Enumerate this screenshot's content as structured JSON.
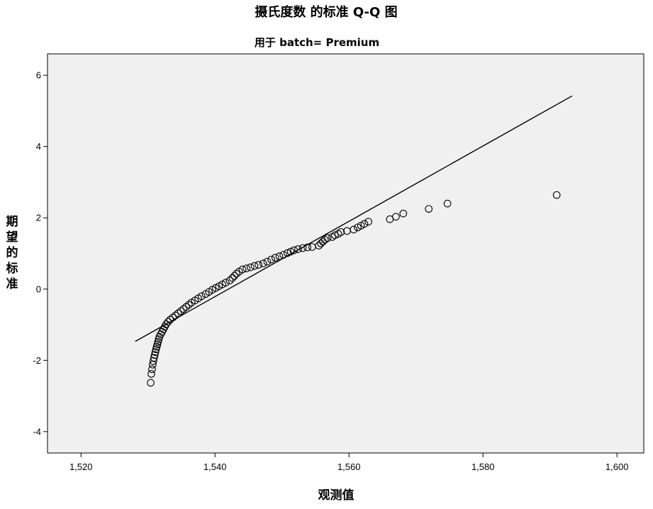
{
  "chart_data": {
    "type": "scatter",
    "title": "摄氏度数 的标准 Q-Q 图",
    "subtitle": "用于 batch= Premium",
    "xlabel": "观测值",
    "ylabel": "期望的标准",
    "xlim": [
      1515,
      1604
    ],
    "ylim": [
      -4.6,
      6.6
    ],
    "x_ticks": [
      1520,
      1540,
      1560,
      1580,
      1600
    ],
    "x_tick_labels": [
      "1,520",
      "1,540",
      "1,560",
      "1,580",
      "1,600"
    ],
    "y_ticks": [
      -4,
      -2,
      0,
      2,
      4,
      6
    ],
    "y_tick_labels": [
      "-4",
      "-2",
      "0",
      "2",
      "4",
      "6"
    ],
    "grid": false,
    "plot_background": "#f0f0f0",
    "marker_color": "#000000",
    "line_color": "#000000",
    "reference_line": [
      [
        1528.1,
        -1.47
      ],
      [
        1593.3,
        5.42
      ]
    ],
    "points": [
      [
        1530.4,
        -2.63
      ],
      [
        1530.5,
        -2.38
      ],
      [
        1530.6,
        -2.25
      ],
      [
        1530.7,
        -2.12
      ],
      [
        1530.8,
        -2.02
      ],
      [
        1530.9,
        -1.93
      ],
      [
        1531.0,
        -1.85
      ],
      [
        1531.1,
        -1.77
      ],
      [
        1531.2,
        -1.69
      ],
      [
        1531.3,
        -1.62
      ],
      [
        1531.4,
        -1.55
      ],
      [
        1531.5,
        -1.48
      ],
      [
        1531.6,
        -1.41
      ],
      [
        1531.7,
        -1.34
      ],
      [
        1531.9,
        -1.27
      ],
      [
        1532.1,
        -1.2
      ],
      [
        1532.3,
        -1.13
      ],
      [
        1532.5,
        -1.06
      ],
      [
        1532.7,
        -0.99
      ],
      [
        1533.0,
        -0.92
      ],
      [
        1533.3,
        -0.86
      ],
      [
        1533.7,
        -0.8
      ],
      [
        1534.1,
        -0.74
      ],
      [
        1534.5,
        -0.68
      ],
      [
        1534.9,
        -0.62
      ],
      [
        1535.3,
        -0.56
      ],
      [
        1535.7,
        -0.5
      ],
      [
        1536.1,
        -0.44
      ],
      [
        1536.5,
        -0.38
      ],
      [
        1537.0,
        -0.32
      ],
      [
        1537.5,
        -0.26
      ],
      [
        1538.0,
        -0.2
      ],
      [
        1538.6,
        -0.14
      ],
      [
        1539.1,
        -0.08
      ],
      [
        1539.6,
        -0.02
      ],
      [
        1540.1,
        0.03
      ],
      [
        1540.6,
        0.08
      ],
      [
        1541.1,
        0.13
      ],
      [
        1541.6,
        0.18
      ],
      [
        1542.2,
        0.24
      ],
      [
        1542.6,
        0.31
      ],
      [
        1542.9,
        0.37
      ],
      [
        1543.2,
        0.43
      ],
      [
        1543.6,
        0.49
      ],
      [
        1544.1,
        0.55
      ],
      [
        1544.7,
        0.58
      ],
      [
        1545.3,
        0.61
      ],
      [
        1545.9,
        0.65
      ],
      [
        1546.5,
        0.68
      ],
      [
        1547.2,
        0.72
      ],
      [
        1547.8,
        0.77
      ],
      [
        1548.4,
        0.83
      ],
      [
        1549.0,
        0.88
      ],
      [
        1549.6,
        0.92
      ],
      [
        1550.2,
        0.96
      ],
      [
        1550.8,
        1.01
      ],
      [
        1551.3,
        1.05
      ],
      [
        1551.8,
        1.09
      ],
      [
        1552.4,
        1.12
      ],
      [
        1553.1,
        1.15
      ],
      [
        1553.8,
        1.17
      ],
      [
        1554.5,
        1.18
      ],
      [
        1555.5,
        1.22
      ],
      [
        1555.8,
        1.28
      ],
      [
        1556.1,
        1.33
      ],
      [
        1556.4,
        1.38
      ],
      [
        1556.8,
        1.43
      ],
      [
        1557.5,
        1.46
      ],
      [
        1557.9,
        1.51
      ],
      [
        1558.4,
        1.55
      ],
      [
        1558.8,
        1.6
      ],
      [
        1559.7,
        1.63
      ],
      [
        1560.7,
        1.67
      ],
      [
        1561.3,
        1.73
      ],
      [
        1561.8,
        1.78
      ],
      [
        1562.3,
        1.83
      ],
      [
        1562.9,
        1.89
      ],
      [
        1566.1,
        1.96
      ],
      [
        1567.0,
        2.03
      ],
      [
        1568.1,
        2.12
      ],
      [
        1571.9,
        2.25
      ],
      [
        1574.7,
        2.4
      ],
      [
        1591.0,
        2.64
      ]
    ]
  }
}
